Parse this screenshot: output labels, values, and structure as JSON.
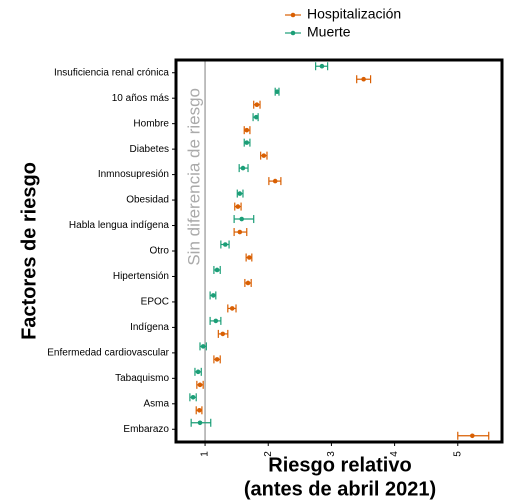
{
  "chart_data": {
    "type": "forest",
    "xlabel": [
      "Riesgo relativo",
      "(antes de abril 2021)"
    ],
    "ylabel": "Factores de riesgo",
    "reference": {
      "value": 1,
      "label": "Sin diferencia de riesgo"
    },
    "categories": [
      "Insuficiencia renal crónica",
      "10 años más",
      "Hombre",
      "Diabetes",
      "Inmnosupresión",
      "Obesidad",
      "Habla lengua indígena",
      "Otro",
      "Hipertensión",
      "EPOC",
      "Indígena",
      "Enfermedad cardiovascular",
      "Tabaquismo",
      "Asma",
      "Embarazo"
    ],
    "series": [
      {
        "name": "Hospitalización",
        "color": "#d95f02",
        "values": [
          3.51,
          1.82,
          1.66,
          1.93,
          2.11,
          1.52,
          1.55,
          1.7,
          1.68,
          1.43,
          1.28,
          1.19,
          0.92,
          0.91,
          5.23
        ],
        "lower": [
          3.4,
          1.77,
          1.62,
          1.88,
          2.01,
          1.47,
          1.46,
          1.65,
          1.63,
          1.36,
          1.21,
          1.14,
          0.87,
          0.86,
          5.0
        ],
        "upper": [
          3.62,
          1.87,
          1.71,
          1.98,
          2.2,
          1.57,
          1.66,
          1.74,
          1.73,
          1.49,
          1.36,
          1.24,
          0.97,
          0.95,
          5.49
        ]
      },
      {
        "name": "Muerte",
        "color": "#1b9e77",
        "values": [
          2.85,
          2.14,
          1.81,
          1.66,
          1.6,
          1.55,
          1.58,
          1.32,
          1.19,
          1.13,
          1.17,
          0.97,
          0.89,
          0.81,
          0.92
        ],
        "lower": [
          2.75,
          2.11,
          1.76,
          1.62,
          1.54,
          1.51,
          1.46,
          1.25,
          1.14,
          1.08,
          1.08,
          0.92,
          0.84,
          0.76,
          0.78
        ],
        "upper": [
          2.94,
          2.17,
          1.84,
          1.71,
          1.68,
          1.6,
          1.77,
          1.38,
          1.24,
          1.17,
          1.25,
          1.02,
          0.94,
          0.86,
          1.09
        ]
      }
    ],
    "xlim": [
      0.54,
      5.7
    ],
    "xticks": [
      1,
      2,
      3,
      4,
      5
    ]
  }
}
